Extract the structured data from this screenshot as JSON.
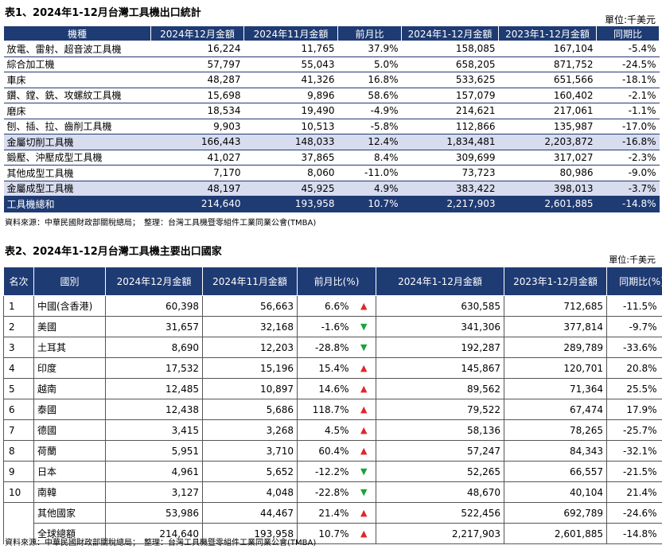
{
  "table1": {
    "title": "表1、2024年1-12月台灣工具機出口統計",
    "unit": "單位:千美元",
    "headers": [
      "機種",
      "2024年12月金額",
      "2024年11月金額",
      "前月比",
      "2024年1-12月金額",
      "2023年1-12月金額",
      "同期比"
    ],
    "rows": [
      {
        "name": "放電、雷射、超音波工具機",
        "dec24": "16,224",
        "nov24": "11,765",
        "mom": "37.9%",
        "ytd24": "158,085",
        "ytd23": "167,104",
        "yoy": "-5.4%",
        "style": "normal"
      },
      {
        "name": "綜合加工機",
        "dec24": "57,797",
        "nov24": "55,043",
        "mom": "5.0%",
        "ytd24": "658,205",
        "ytd23": "871,752",
        "yoy": "-24.5%",
        "style": "normal"
      },
      {
        "name": "車床",
        "dec24": "48,287",
        "nov24": "41,326",
        "mom": "16.8%",
        "ytd24": "533,625",
        "ytd23": "651,566",
        "yoy": "-18.1%",
        "style": "normal"
      },
      {
        "name": "鑽、鏜、銑、攻螺紋工具機",
        "dec24": "15,698",
        "nov24": "9,896",
        "mom": "58.6%",
        "ytd24": "157,079",
        "ytd23": "160,402",
        "yoy": "-2.1%",
        "style": "normal"
      },
      {
        "name": "磨床",
        "dec24": "18,534",
        "nov24": "19,490",
        "mom": "-4.9%",
        "ytd24": "214,621",
        "ytd23": "217,061",
        "yoy": "-1.1%",
        "style": "normal"
      },
      {
        "name": "刨、插、拉、齒削工具機",
        "dec24": "9,903",
        "nov24": "10,513",
        "mom": "-5.8%",
        "ytd24": "112,866",
        "ytd23": "135,987",
        "yoy": "-17.0%",
        "style": "normal"
      },
      {
        "name": "金屬切削工具機",
        "dec24": "166,443",
        "nov24": "148,033",
        "mom": "12.4%",
        "ytd24": "1,834,481",
        "ytd23": "2,203,872",
        "yoy": "-16.8%",
        "style": "sub"
      },
      {
        "name": "鍛壓、沖壓成型工具機",
        "dec24": "41,027",
        "nov24": "37,865",
        "mom": "8.4%",
        "ytd24": "309,699",
        "ytd23": "317,027",
        "yoy": "-2.3%",
        "style": "normal"
      },
      {
        "name": "其他成型工具機",
        "dec24": "7,170",
        "nov24": "8,060",
        "mom": "-11.0%",
        "ytd24": "73,723",
        "ytd23": "80,986",
        "yoy": "-9.0%",
        "style": "normal"
      },
      {
        "name": "金屬成型工具機",
        "dec24": "48,197",
        "nov24": "45,925",
        "mom": "4.9%",
        "ytd24": "383,422",
        "ytd23": "398,013",
        "yoy": "-3.7%",
        "style": "sub"
      },
      {
        "name": "工具機總和",
        "dec24": "214,640",
        "nov24": "193,958",
        "mom": "10.7%",
        "ytd24": "2,217,903",
        "ytd23": "2,601,885",
        "yoy": "-14.8%",
        "style": "total"
      }
    ],
    "source": "資料來源：中華民國財政部關稅總局；　整理：台灣工具機暨零組件工業同業公會(TMBA)"
  },
  "table2": {
    "title": "表2、2024年1-12月台灣工具機主要出口國家",
    "unit": "單位:千美元",
    "headers": [
      "名次",
      "國別",
      "2024年12月金額",
      "2024年11月金額",
      "前月比(%)",
      "2024年1-12月金額",
      "2023年1-12月金額",
      "同期比(%)"
    ],
    "rows": [
      {
        "rank": "1",
        "country": "中國(含香港)",
        "dec24": "60,398",
        "nov24": "56,663",
        "mom": "6.6%",
        "mom_dir": "up",
        "ytd24": "630,585",
        "ytd23": "712,685",
        "yoy": "-11.5%",
        "yoy_dir": "down"
      },
      {
        "rank": "2",
        "country": "美國",
        "dec24": "31,657",
        "nov24": "32,168",
        "mom": "-1.6%",
        "mom_dir": "down",
        "ytd24": "341,306",
        "ytd23": "377,814",
        "yoy": "-9.7%",
        "yoy_dir": "down"
      },
      {
        "rank": "3",
        "country": "土耳其",
        "dec24": "8,690",
        "nov24": "12,203",
        "mom": "-28.8%",
        "mom_dir": "down",
        "ytd24": "192,287",
        "ytd23": "289,789",
        "yoy": "-33.6%",
        "yoy_dir": "down"
      },
      {
        "rank": "4",
        "country": "印度",
        "dec24": "17,532",
        "nov24": "15,196",
        "mom": "15.4%",
        "mom_dir": "up",
        "ytd24": "145,867",
        "ytd23": "120,701",
        "yoy": "20.8%",
        "yoy_dir": "up"
      },
      {
        "rank": "5",
        "country": "越南",
        "dec24": "12,485",
        "nov24": "10,897",
        "mom": "14.6%",
        "mom_dir": "up",
        "ytd24": "89,562",
        "ytd23": "71,364",
        "yoy": "25.5%",
        "yoy_dir": "up"
      },
      {
        "rank": "6",
        "country": "泰國",
        "dec24": "12,438",
        "nov24": "5,686",
        "mom": "118.7%",
        "mom_dir": "up",
        "ytd24": "79,522",
        "ytd23": "67,474",
        "yoy": "17.9%",
        "yoy_dir": "up"
      },
      {
        "rank": "7",
        "country": "德國",
        "dec24": "3,415",
        "nov24": "3,268",
        "mom": "4.5%",
        "mom_dir": "up",
        "ytd24": "58,136",
        "ytd23": "78,265",
        "yoy": "-25.7%",
        "yoy_dir": "down"
      },
      {
        "rank": "8",
        "country": "荷蘭",
        "dec24": "5,951",
        "nov24": "3,710",
        "mom": "60.4%",
        "mom_dir": "up",
        "ytd24": "57,247",
        "ytd23": "84,343",
        "yoy": "-32.1%",
        "yoy_dir": "down"
      },
      {
        "rank": "9",
        "country": "日本",
        "dec24": "4,961",
        "nov24": "5,652",
        "mom": "-12.2%",
        "mom_dir": "down",
        "ytd24": "52,265",
        "ytd23": "66,557",
        "yoy": "-21.5%",
        "yoy_dir": "down"
      },
      {
        "rank": "10",
        "country": "南韓",
        "dec24": "3,127",
        "nov24": "4,048",
        "mom": "-22.8%",
        "mom_dir": "down",
        "ytd24": "48,670",
        "ytd23": "40,104",
        "yoy": "21.4%",
        "yoy_dir": "up"
      },
      {
        "rank": "",
        "country": "其他國家",
        "dec24": "53,986",
        "nov24": "44,467",
        "mom": "21.4%",
        "mom_dir": "up",
        "ytd24": "522,456",
        "ytd23": "692,789",
        "yoy": "-24.6%",
        "yoy_dir": "down"
      },
      {
        "rank": "",
        "country": "全球總額",
        "dec24": "214,640",
        "nov24": "193,958",
        "mom": "10.7%",
        "mom_dir": "up",
        "ytd24": "2,217,903",
        "ytd23": "2,601,885",
        "yoy": "-14.8%",
        "yoy_dir": "down"
      }
    ],
    "source": "資料來源：中華民國財政部關稅總局；　整理：台灣工具機暨零組件工業同業公會(TMBA)"
  },
  "colors": {
    "header_bg": "#1f3b74",
    "subtotal_bg": "#d8dcef",
    "up": "#e0262a",
    "down": "#1aa33b"
  },
  "icons": {
    "up": "up-triangle-icon",
    "down": "down-triangle-icon"
  }
}
